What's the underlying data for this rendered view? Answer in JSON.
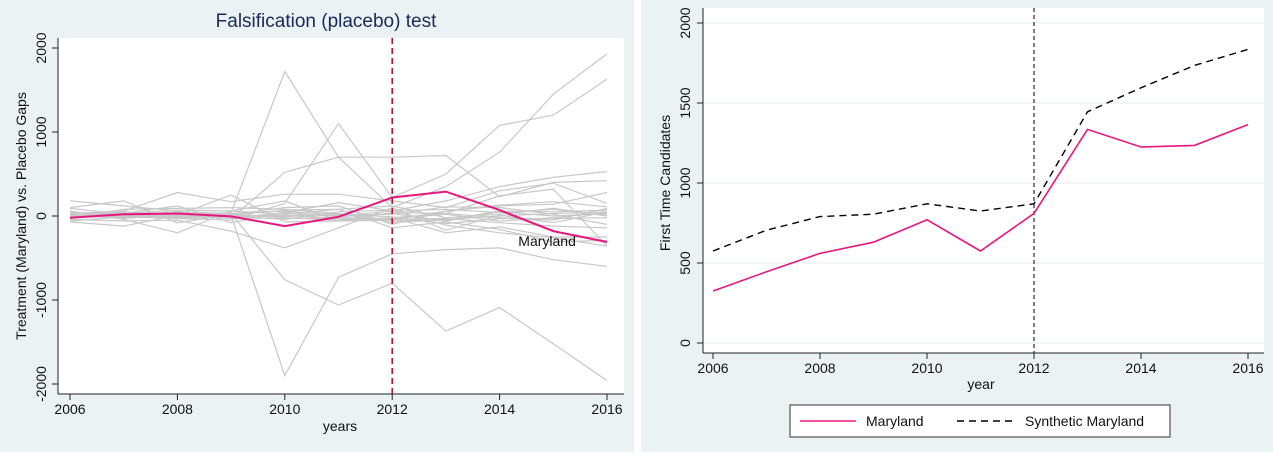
{
  "chart_data": [
    {
      "type": "line",
      "title": "Falsification (placebo) test",
      "xlabel": "years",
      "ylabel": "Treatment (Maryland) vs. Placebo Gaps",
      "x": [
        2006,
        2007,
        2008,
        2009,
        2010,
        2011,
        2012,
        2013,
        2014,
        2015,
        2016
      ],
      "xlim": [
        2006,
        2016
      ],
      "ylim": [
        -2000,
        2000
      ],
      "x_ticks": [
        "2006",
        "2008",
        "2010",
        "2012",
        "2014",
        "2016"
      ],
      "y_ticks": [
        "-2000",
        "-1000",
        "0",
        "1000",
        "2000"
      ],
      "treatment_year": 2012,
      "annotation": "Maryland",
      "colors": {
        "treated": "#e8177d",
        "placebo": "#c8c8c8",
        "vline": "#c0142c",
        "title": "#1a2a5a",
        "outer_bg": "#eaf2f3"
      },
      "series": [
        {
          "treated": true,
          "values": [
            -20,
            20,
            30,
            -5,
            -120,
            -10,
            220,
            290,
            70,
            -180,
            -310
          ]
        },
        {
          "values": [
            0,
            40,
            20,
            40,
            1720,
            700,
            700,
            720,
            230,
            400,
            420
          ]
        },
        {
          "values": [
            20,
            0,
            0,
            10,
            -1900,
            -730,
            -450,
            -400,
            -380,
            -520,
            -600
          ]
        },
        {
          "values": [
            -10,
            10,
            -30,
            -50,
            150,
            1100,
            220,
            500,
            1080,
            1200,
            1630
          ]
        },
        {
          "values": [
            10,
            -20,
            0,
            30,
            -760,
            -1060,
            -800,
            -1370,
            -1090,
            -1520,
            -1960
          ]
        },
        {
          "values": [
            0,
            50,
            10,
            -30,
            520,
            700,
            100,
            350,
            760,
            1450,
            1930
          ]
        },
        {
          "values": [
            180,
            120,
            60,
            -30,
            40,
            160,
            60,
            180,
            350,
            460,
            530
          ]
        },
        {
          "values": [
            -70,
            -120,
            10,
            250,
            -70,
            -60,
            -20,
            -200,
            -130,
            -250,
            -250
          ]
        },
        {
          "values": [
            100,
            180,
            -80,
            20,
            100,
            120,
            -100,
            60,
            120,
            140,
            280
          ]
        },
        {
          "values": [
            30,
            60,
            280,
            170,
            260,
            260,
            180,
            100,
            300,
            390,
            150
          ]
        },
        {
          "values": [
            -40,
            -60,
            -50,
            -180,
            -380,
            -140,
            100,
            -170,
            10,
            -80,
            50
          ]
        },
        {
          "values": [
            60,
            -40,
            -200,
            60,
            180,
            -60,
            -50,
            60,
            130,
            170,
            110
          ]
        },
        {
          "values": [
            40,
            30,
            120,
            -80,
            50,
            -50,
            -20,
            30,
            240,
            320,
            -360
          ]
        },
        {
          "values": [
            -20,
            80,
            90,
            100,
            80,
            30,
            -60,
            -50,
            60,
            50,
            70
          ]
        },
        {
          "values": [
            90,
            20,
            40,
            10,
            70,
            80,
            -140,
            -70,
            -160,
            -310,
            -290
          ]
        },
        {
          "values": [
            -60,
            -10,
            -30,
            0,
            -40,
            50,
            70,
            -110,
            -200,
            -260,
            -360
          ]
        },
        {
          "values": [
            10,
            30,
            70,
            60,
            20,
            80,
            120,
            -20,
            20,
            90,
            0
          ]
        },
        {
          "values": [
            20,
            10,
            -20,
            -10,
            10,
            -30,
            -40,
            -30,
            -80,
            -120,
            -140
          ]
        },
        {
          "values": [
            -30,
            40,
            30,
            -20,
            -30,
            -20,
            -30,
            20,
            -60,
            -20,
            40
          ]
        },
        {
          "values": [
            50,
            10,
            50,
            30,
            60,
            10,
            20,
            110,
            100,
            20,
            -100
          ]
        },
        {
          "values": [
            0,
            -20,
            -10,
            10,
            -10,
            30,
            -80,
            -40,
            0,
            30,
            50
          ]
        },
        {
          "values": [
            -10,
            20,
            10,
            -20,
            30,
            0,
            60,
            80,
            40,
            80,
            10
          ]
        },
        {
          "values": [
            30,
            -30,
            20,
            20,
            -20,
            -50,
            40,
            30,
            -20,
            -50,
            90
          ]
        },
        {
          "values": [
            15,
            5,
            -5,
            5,
            0,
            20,
            -10,
            -90,
            -30,
            -30,
            -20
          ]
        },
        {
          "values": [
            -20,
            0,
            25,
            -30,
            40,
            -10,
            30,
            -60,
            50,
            0,
            30
          ]
        }
      ]
    },
    {
      "type": "line",
      "xlabel": "year",
      "ylabel": "First Time Candidates",
      "x": [
        2006,
        2007,
        2008,
        2009,
        2010,
        2011,
        2012,
        2013,
        2014,
        2015,
        2016
      ],
      "xlim": [
        2006,
        2016
      ],
      "ylim": [
        0,
        2000
      ],
      "x_ticks": [
        "2006",
        "2008",
        "2010",
        "2012",
        "2014",
        "2016"
      ],
      "y_ticks": [
        "0",
        "500",
        "1000",
        "1500",
        "2000"
      ],
      "treatment_year": 2012,
      "legend_position": "bottom",
      "grid": true,
      "colors": {
        "maryland": "#e8177d",
        "synthetic": "#000000",
        "outer_bg": "#eaf2f3"
      },
      "series": [
        {
          "name": "Maryland",
          "values": [
            325,
            445,
            560,
            630,
            770,
            575,
            810,
            1335,
            1225,
            1235,
            1365
          ]
        },
        {
          "name": "Synthetic Maryland",
          "values": [
            575,
            705,
            790,
            805,
            870,
            825,
            870,
            1445,
            1595,
            1735,
            1835
          ]
        }
      ]
    }
  ]
}
